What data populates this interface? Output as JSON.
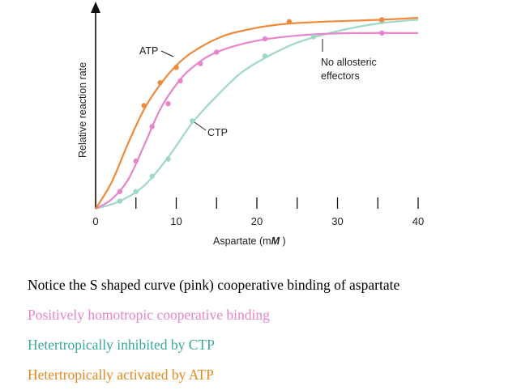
{
  "chart_data": {
    "type": "line",
    "xlabel": "Aspartate (mM)",
    "ylabel": "Relative reaction rate",
    "xlim": [
      0,
      40
    ],
    "ylim": [
      0,
      1
    ],
    "x_ticks": [
      0,
      10,
      20,
      30,
      40
    ],
    "grid": false,
    "series": [
      {
        "name": "ATP",
        "color": "#ee8a3b",
        "points": [
          [
            0,
            0
          ],
          [
            2,
            0.14
          ],
          [
            4,
            0.34
          ],
          [
            6,
            0.52
          ],
          [
            8,
            0.65
          ],
          [
            10,
            0.75
          ],
          [
            12,
            0.82
          ],
          [
            15,
            0.89
          ],
          [
            18,
            0.93
          ],
          [
            24,
            0.97
          ],
          [
            35.5,
            0.99
          ],
          [
            40,
            1.0
          ]
        ],
        "markers": [
          [
            6,
            0.54
          ],
          [
            8,
            0.66
          ],
          [
            10,
            0.74
          ],
          [
            24,
            0.98
          ],
          [
            35.5,
            0.99
          ]
        ]
      },
      {
        "name": "No allosteric effectors",
        "color": "#e884cc",
        "points": [
          [
            0,
            0
          ],
          [
            2,
            0.05
          ],
          [
            4,
            0.15
          ],
          [
            6,
            0.33
          ],
          [
            8,
            0.52
          ],
          [
            10,
            0.65
          ],
          [
            12,
            0.74
          ],
          [
            15,
            0.82
          ],
          [
            20,
            0.88
          ],
          [
            26,
            0.91
          ],
          [
            32,
            0.92
          ],
          [
            40,
            0.92
          ]
        ],
        "markers": [
          [
            3,
            0.09
          ],
          [
            5,
            0.25
          ],
          [
            7,
            0.43
          ],
          [
            9,
            0.55
          ],
          [
            10.5,
            0.67
          ],
          [
            13,
            0.76
          ],
          [
            15,
            0.82
          ],
          [
            21,
            0.89
          ],
          [
            35.5,
            0.92
          ]
        ]
      },
      {
        "name": "CTP",
        "color": "#9fd8c8",
        "points": [
          [
            0,
            0
          ],
          [
            3,
            0.04
          ],
          [
            6,
            0.12
          ],
          [
            9,
            0.27
          ],
          [
            12,
            0.45
          ],
          [
            15,
            0.59
          ],
          [
            18,
            0.71
          ],
          [
            21,
            0.79
          ],
          [
            25,
            0.87
          ],
          [
            30,
            0.93
          ],
          [
            35,
            0.97
          ],
          [
            40,
            0.99
          ]
        ],
        "markers": [
          [
            3,
            0.04
          ],
          [
            5,
            0.09
          ],
          [
            7,
            0.17
          ],
          [
            9,
            0.26
          ],
          [
            12,
            0.46
          ],
          [
            21,
            0.8
          ],
          [
            27,
            0.9
          ],
          [
            35.5,
            0.98
          ]
        ]
      }
    ],
    "annotations": {
      "atp_label": "ATP",
      "ctp_label": "CTP",
      "none_label_1": "No allosteric",
      "none_label_2": "effectors"
    }
  },
  "notes": {
    "line1": "Notice the S shaped curve (pink) cooperative binding of aspartate",
    "line2": "Positively homotropic cooperative binding",
    "line3": "Hetertropically inhibited by CTP",
    "line4": "Hetertropically activated by ATP",
    "colors": {
      "line1": "#000000",
      "line2": "#e884cc",
      "line3": "#3aa89a",
      "line4": "#e28a1e"
    }
  }
}
